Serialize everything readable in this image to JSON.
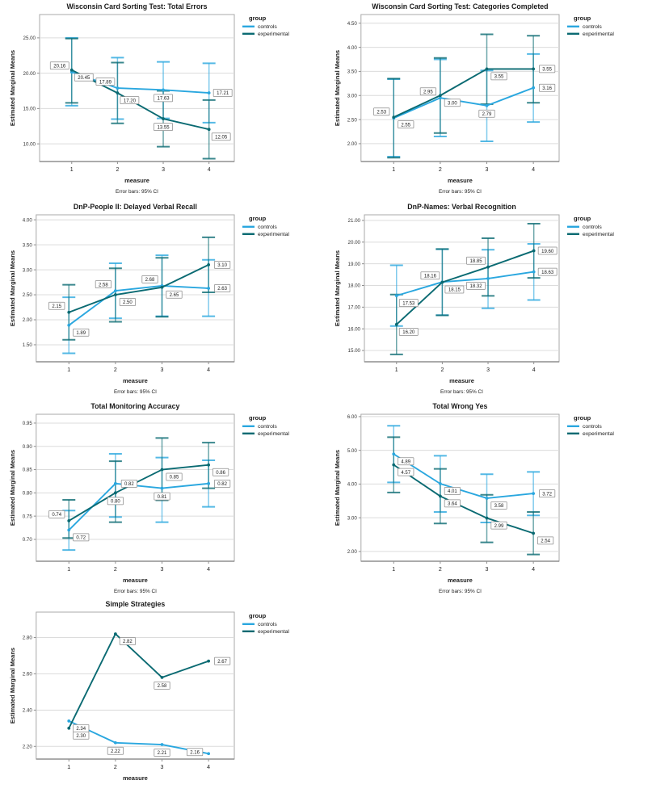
{
  "page": {
    "background": "#FFFFFF"
  },
  "palette": {
    "controls": "#2AA7DF",
    "experimental": "#0A6A72",
    "grid": "#DCDCDC",
    "frame": "#A9A9A9",
    "axis": "#8F8F8F",
    "text": "#1A1A1A",
    "tick_text": "#333333",
    "label_box_border": "#8C8C8C",
    "label_box_fill": "#FFFFFF"
  },
  "legend": {
    "title": "group",
    "entries": [
      {
        "label": "controls",
        "series": "controls"
      },
      {
        "label": "experimental",
        "series": "experimental"
      }
    ]
  },
  "shared": {
    "xlabel": "measure",
    "ylabel": "Estimated Marginal Means",
    "caption": "Error bars: 95% CI",
    "x_categories": [
      "1",
      "2",
      "3",
      "4"
    ]
  },
  "chart_data": [
    {
      "id": "wcst-total-errors",
      "type": "line",
      "title": "Wisconsin Card Sorting Test: Total Errors",
      "xlabel": "measure",
      "ylabel": "Estimated Marginal Means",
      "caption": "Error bars: 95% CI",
      "grid": true,
      "legend_position": "top-right",
      "ylim": [
        7.5,
        28.3
      ],
      "yticks": [
        {
          "v": 25,
          "label": "25.00"
        },
        {
          "v": 20,
          "label": "20.00"
        },
        {
          "v": 15,
          "label": "15.00"
        },
        {
          "v": 10,
          "label": "10.00"
        }
      ],
      "series": [
        {
          "name": "controls",
          "values": [
            20.16,
            17.89,
            17.63,
            17.21
          ],
          "point_labels": [
            "20.16",
            "17.89",
            "17.63",
            "17.21"
          ],
          "label_pos": [
            "al",
            "al",
            "b",
            "r"
          ],
          "ci_low": [
            15.4,
            13.5,
            13.6,
            13.0
          ],
          "ci_high": [
            25.0,
            22.2,
            21.6,
            21.4
          ]
        },
        {
          "name": "experimental",
          "values": [
            20.45,
            17.2,
            13.55,
            12.05
          ],
          "point_labels": [
            "20.45",
            "17.20",
            "13.55",
            "12.05"
          ],
          "label_pos": [
            "br",
            "br",
            "b",
            "br"
          ],
          "ci_low": [
            15.8,
            12.9,
            9.6,
            7.9
          ],
          "ci_high": [
            24.9,
            21.5,
            17.5,
            16.2
          ]
        }
      ]
    },
    {
      "id": "wcst-categories-completed",
      "type": "line",
      "title": "Wisconsin Card Sorting Test: Categories Completed",
      "xlabel": "measure",
      "ylabel": "Estimated Marginal Means",
      "caption": "Error bars: 95% CI",
      "grid": true,
      "legend_position": "top-right",
      "ylim": [
        1.63,
        4.68
      ],
      "yticks": [
        {
          "v": 4.5,
          "label": "4.50"
        },
        {
          "v": 4.0,
          "label": "4.00"
        },
        {
          "v": 3.5,
          "label": "3.50"
        },
        {
          "v": 3.0,
          "label": "3.00"
        },
        {
          "v": 2.5,
          "label": "2.50"
        },
        {
          "v": 2.0,
          "label": "2.00"
        }
      ],
      "series": [
        {
          "name": "controls",
          "values": [
            2.53,
            2.95,
            2.79,
            3.16
          ],
          "point_labels": [
            "2.53",
            "2.95",
            "2.79",
            "3.16"
          ],
          "label_pos": [
            "al",
            "al",
            "b",
            "r"
          ],
          "ci_low": [
            1.73,
            2.15,
            2.05,
            2.45
          ],
          "ci_high": [
            3.34,
            3.75,
            3.52,
            3.86
          ]
        },
        {
          "name": "experimental",
          "values": [
            2.55,
            3.0,
            3.55,
            3.55
          ],
          "point_labels": [
            "2.55",
            "3.00",
            "3.55",
            "3.55"
          ],
          "label_pos": [
            "br",
            "br",
            "br",
            "r"
          ],
          "ci_low": [
            1.71,
            2.22,
            2.82,
            2.85
          ],
          "ci_high": [
            3.35,
            3.78,
            4.27,
            4.24
          ]
        }
      ]
    },
    {
      "id": "dnp-people-delayed-verbal-recall",
      "type": "line",
      "title": "DnP-People II: Delayed Verbal Recall",
      "xlabel": "measure",
      "ylabel": "Estimated Marginal Means",
      "caption": "Error bars: 95% CI",
      "grid": true,
      "legend_position": "top-right",
      "ylim": [
        1.16,
        4.1
      ],
      "yticks": [
        {
          "v": 4.0,
          "label": "4.00"
        },
        {
          "v": 3.5,
          "label": "3.50"
        },
        {
          "v": 3.0,
          "label": "3.00"
        },
        {
          "v": 2.5,
          "label": "2.50"
        },
        {
          "v": 2.0,
          "label": "2.00"
        },
        {
          "v": 1.5,
          "label": "1.50"
        }
      ],
      "series": [
        {
          "name": "controls",
          "values": [
            1.89,
            2.58,
            2.68,
            2.63
          ],
          "point_labels": [
            "1.89",
            "2.58",
            "2.68",
            "2.63"
          ],
          "label_pos": [
            "br",
            "al",
            "al",
            "r"
          ],
          "ci_low": [
            1.33,
            2.03,
            2.07,
            2.07
          ],
          "ci_high": [
            2.45,
            3.13,
            3.29,
            3.2
          ]
        },
        {
          "name": "experimental",
          "values": [
            2.15,
            2.5,
            2.65,
            3.1
          ],
          "point_labels": [
            "2.15",
            "2.50",
            "2.65",
            "3.10"
          ],
          "label_pos": [
            "al",
            "br",
            "br",
            "r"
          ],
          "ci_low": [
            1.6,
            1.96,
            2.06,
            2.55
          ],
          "ci_high": [
            2.7,
            3.03,
            3.24,
            3.65
          ]
        }
      ]
    },
    {
      "id": "dnp-names-verbal-recognition",
      "type": "line",
      "title": "DnP-Names: Verbal Recognition",
      "xlabel": "measure",
      "ylabel": "Estimated Marginal Means",
      "caption": "Error bars: 95% CI",
      "grid": true,
      "legend_position": "top-right",
      "ylim": [
        14.48,
        21.26
      ],
      "yticks": [
        {
          "v": 21,
          "label": "21.00"
        },
        {
          "v": 20,
          "label": "20.00"
        },
        {
          "v": 19,
          "label": "19.00"
        },
        {
          "v": 18,
          "label": "18.00"
        },
        {
          "v": 17,
          "label": "17.00"
        },
        {
          "v": 16,
          "label": "16.00"
        },
        {
          "v": 15,
          "label": "15.00"
        }
      ],
      "series": [
        {
          "name": "controls",
          "values": [
            17.53,
            18.16,
            18.32,
            18.63
          ],
          "point_labels": [
            "17.53",
            "18.16",
            "18.32",
            "18.63"
          ],
          "label_pos": [
            "br",
            "al",
            "bl",
            "r"
          ],
          "ci_low": [
            16.13,
            16.63,
            16.95,
            17.33
          ],
          "ci_high": [
            18.93,
            19.67,
            19.65,
            19.92
          ]
        },
        {
          "name": "experimental",
          "values": [
            16.2,
            18.15,
            18.85,
            19.6
          ],
          "point_labels": [
            "16.20",
            "18.15",
            "18.85",
            "19.60"
          ],
          "label_pos": [
            "br",
            "br",
            "al",
            "r"
          ],
          "ci_low": [
            14.82,
            16.62,
            17.52,
            18.35
          ],
          "ci_high": [
            17.58,
            19.68,
            20.18,
            20.85
          ]
        }
      ]
    },
    {
      "id": "total-monitoring-accuracy",
      "type": "line",
      "title": "Total Monitoring Accuracy",
      "xlabel": "measure",
      "ylabel": "Estimated Marginal Means",
      "caption": "Error bars: 95% CI",
      "grid": true,
      "legend_position": "top-right",
      "ylim": [
        0.653,
        0.969
      ],
      "yticks": [
        {
          "v": 0.95,
          "label": "0.95"
        },
        {
          "v": 0.9,
          "label": "0.90"
        },
        {
          "v": 0.85,
          "label": "0.85"
        },
        {
          "v": 0.8,
          "label": "0.80"
        },
        {
          "v": 0.75,
          "label": "0.75"
        },
        {
          "v": 0.7,
          "label": "0.70"
        }
      ],
      "series": [
        {
          "name": "controls",
          "values": [
            0.72,
            0.82,
            0.81,
            0.82
          ],
          "point_labels": [
            "0.72",
            "0.82",
            "0.81",
            "0.82"
          ],
          "label_pos": [
            "br",
            "r",
            "b",
            "r"
          ],
          "ci_low": [
            0.677,
            0.748,
            0.737,
            0.77
          ],
          "ci_high": [
            0.762,
            0.884,
            0.876,
            0.87
          ]
        },
        {
          "name": "experimental",
          "values": [
            0.74,
            0.8,
            0.85,
            0.86
          ],
          "point_labels": [
            "0.74",
            "0.80",
            "0.85",
            "0.86"
          ],
          "label_pos": [
            "al",
            "b",
            "br",
            "br"
          ],
          "ci_low": [
            0.703,
            0.737,
            0.784,
            0.81
          ],
          "ci_high": [
            0.785,
            0.868,
            0.918,
            0.908
          ]
        }
      ]
    },
    {
      "id": "total-wrong-yes",
      "type": "line",
      "title": "Total Wrong Yes",
      "xlabel": "measure",
      "ylabel": "Estimated Marginal Means",
      "caption": "Error bars: 95% CI",
      "grid": true,
      "legend_position": "top-right",
      "ylim": [
        1.71,
        6.07
      ],
      "yticks": [
        {
          "v": 6,
          "label": "6.00"
        },
        {
          "v": 5,
          "label": "5.00"
        },
        {
          "v": 4,
          "label": "4.00"
        },
        {
          "v": 3,
          "label": "3.00"
        },
        {
          "v": 2,
          "label": "2.00"
        }
      ],
      "series": [
        {
          "name": "controls",
          "values": [
            4.89,
            4.01,
            3.58,
            3.72
          ],
          "point_labels": [
            "4.89",
            "4.01",
            "3.58",
            "3.72"
          ],
          "label_pos": [
            "br",
            "br",
            "br",
            "r"
          ],
          "ci_low": [
            4.05,
            3.17,
            2.86,
            3.07
          ],
          "ci_high": [
            5.73,
            4.84,
            4.29,
            4.36
          ]
        },
        {
          "name": "experimental",
          "values": [
            4.57,
            3.64,
            2.99,
            2.54
          ],
          "point_labels": [
            "4.57",
            "3.64",
            "2.99",
            "2.54"
          ],
          "label_pos": [
            "br",
            "br",
            "br",
            "br"
          ],
          "ci_low": [
            3.75,
            2.83,
            2.27,
            1.91
          ],
          "ci_high": [
            5.39,
            4.45,
            3.68,
            3.17
          ]
        }
      ]
    },
    {
      "id": "simple-strategies",
      "type": "line",
      "title": "Simple Strategies",
      "xlabel": "measure",
      "ylabel": "Estimated Marginal Means",
      "caption": null,
      "grid": true,
      "legend_position": "top-right",
      "ylim": [
        2.13,
        2.94
      ],
      "yticks": [
        {
          "v": 2.8,
          "label": "2.80"
        },
        {
          "v": 2.6,
          "label": "2.60"
        },
        {
          "v": 2.4,
          "label": "2.40"
        },
        {
          "v": 2.2,
          "label": "2.20"
        }
      ],
      "series": [
        {
          "name": "controls",
          "values": [
            2.34,
            2.22,
            2.21,
            2.16
          ],
          "point_labels": [
            "2.34",
            "2.22",
            "2.21",
            "2.16"
          ],
          "label_pos": [
            "br",
            "b",
            "b",
            "l"
          ],
          "ci_low": null,
          "ci_high": null
        },
        {
          "name": "experimental",
          "values": [
            2.3,
            2.82,
            2.58,
            2.67
          ],
          "point_labels": [
            "2.30",
            "2.82",
            "2.58",
            "2.67"
          ],
          "label_pos": [
            "br",
            "br",
            "b",
            "r"
          ],
          "ci_low": null,
          "ci_high": null
        }
      ]
    }
  ]
}
